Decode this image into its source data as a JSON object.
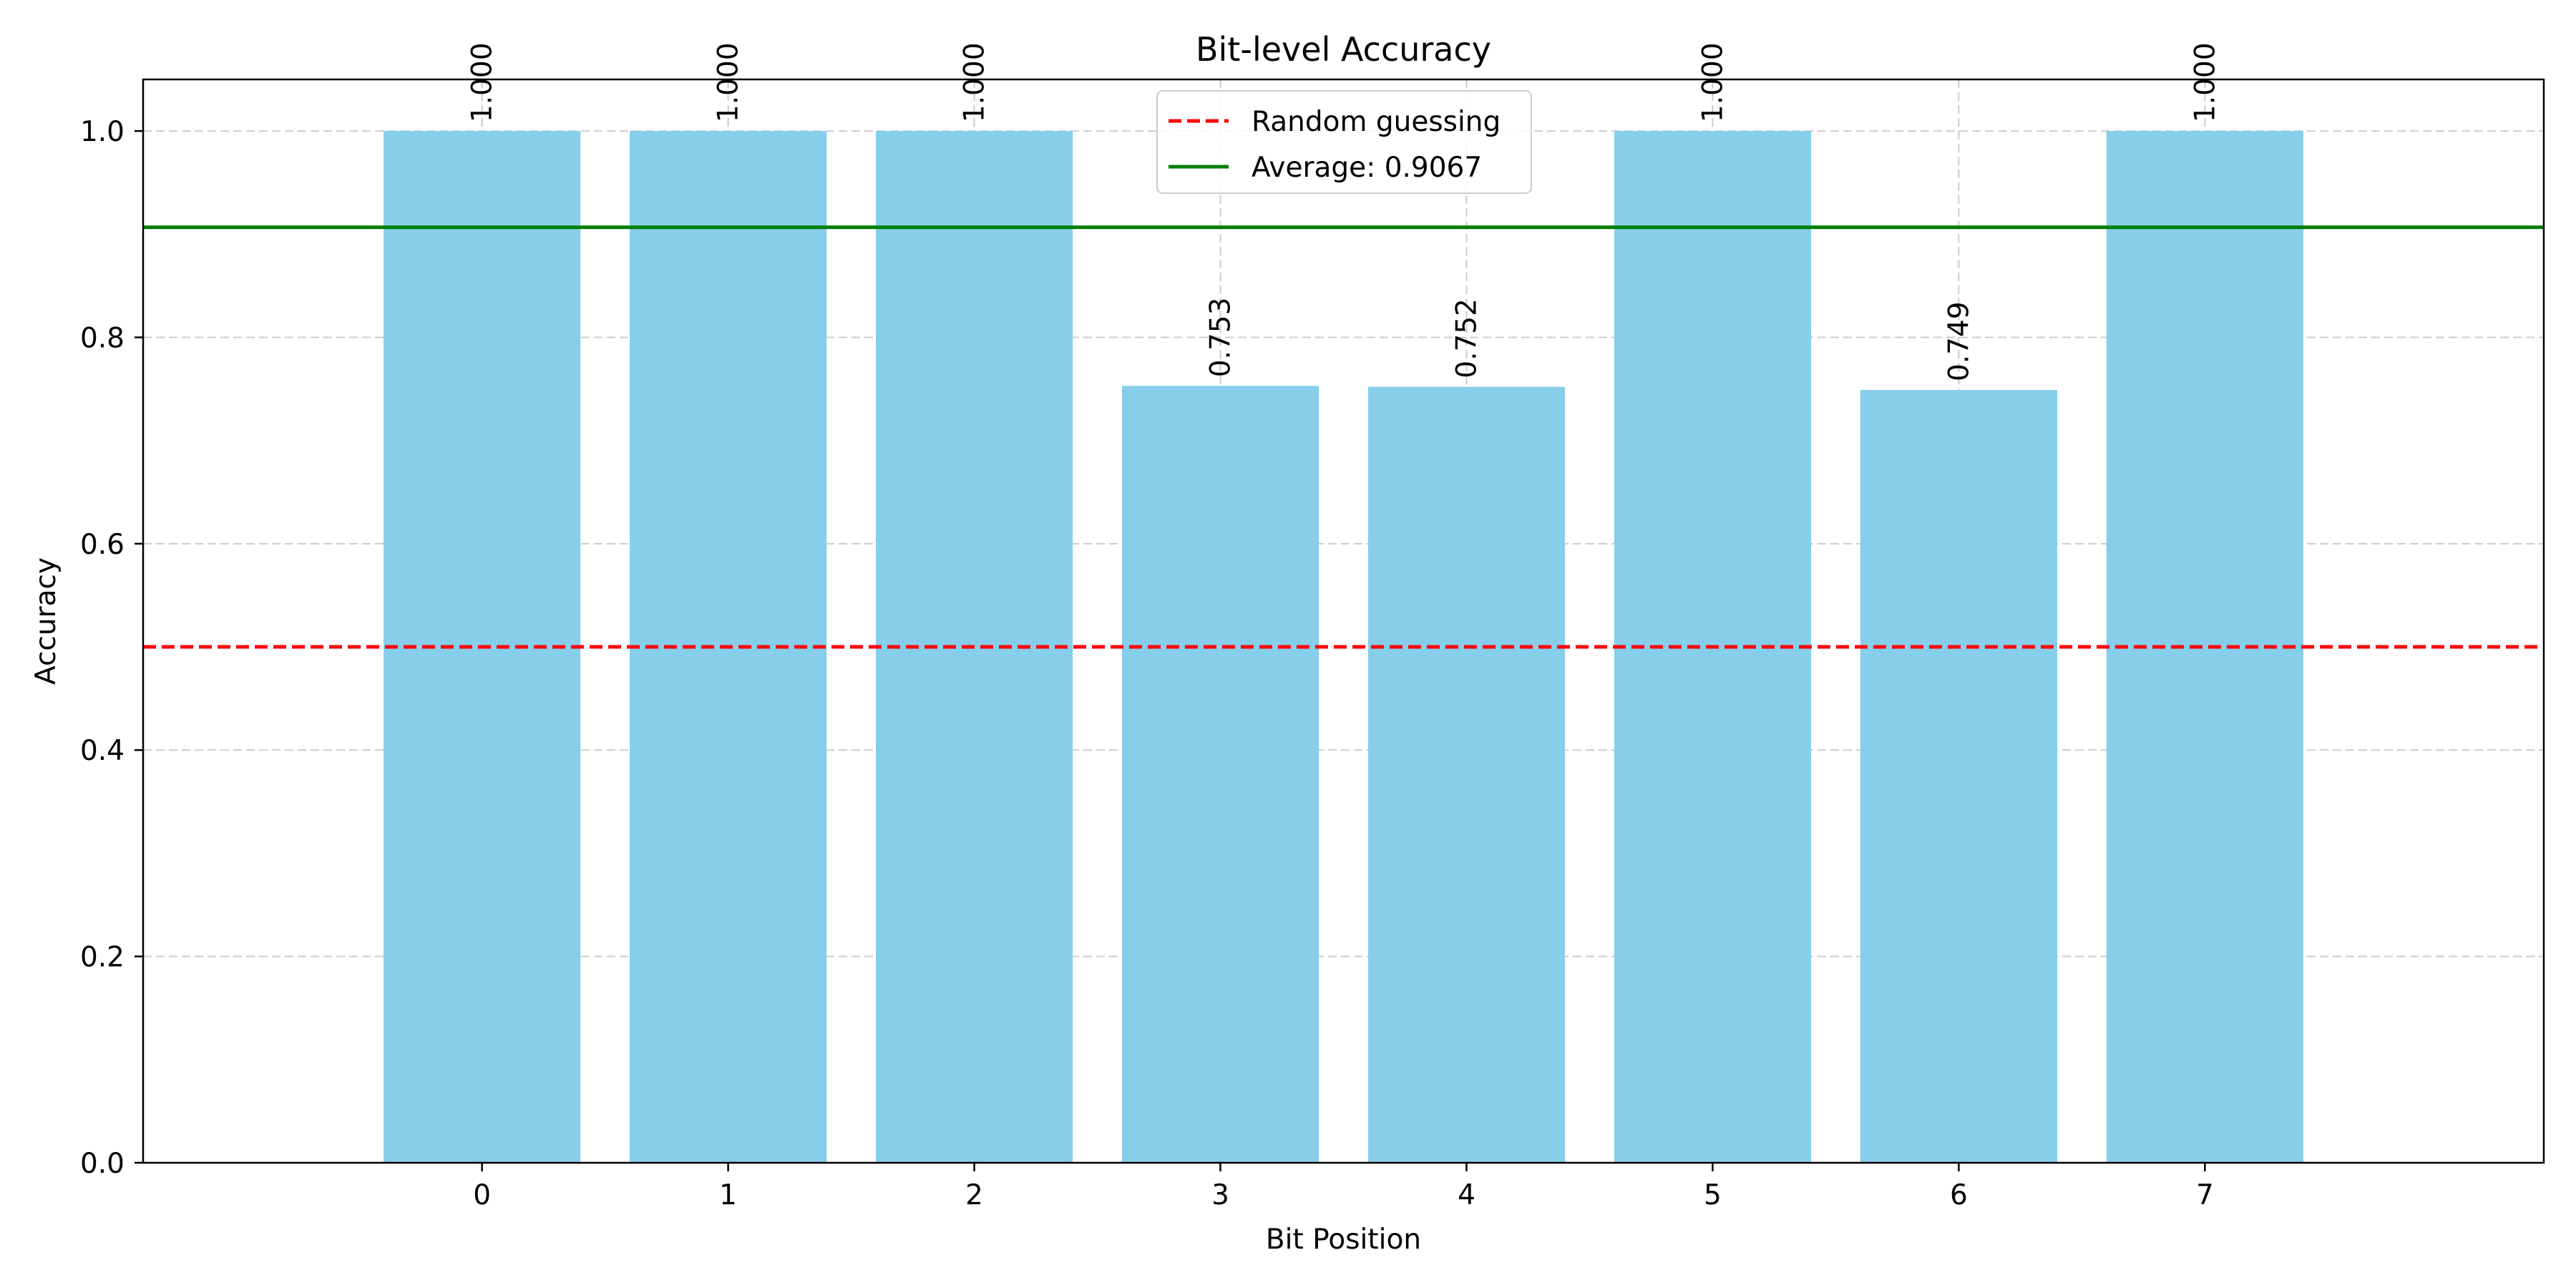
{
  "chart_data": {
    "type": "bar",
    "title": "Bit-level Accuracy",
    "xlabel": "Bit Position",
    "ylabel": "Accuracy",
    "categories": [
      "0",
      "1",
      "2",
      "3",
      "4",
      "5",
      "6",
      "7"
    ],
    "values": [
      1.0,
      1.0,
      1.0,
      0.753,
      0.752,
      1.0,
      0.749,
      1.0
    ],
    "value_labels": [
      "1.000",
      "1.000",
      "1.000",
      "0.753",
      "0.752",
      "1.000",
      "0.749",
      "1.000"
    ],
    "ylim": [
      0,
      1.05
    ],
    "yticks": [
      0.0,
      0.2,
      0.4,
      0.6,
      0.8,
      1.0
    ],
    "ytick_labels": [
      "0.0",
      "0.2",
      "0.4",
      "0.6",
      "0.8",
      "1.0"
    ],
    "grid": true,
    "bar_color": "#87CEEB",
    "reference_lines": [
      {
        "name": "Random guessing",
        "value": 0.5,
        "color": "#ff0000",
        "style": "dashed"
      },
      {
        "name": "Average: 0.9067",
        "value": 0.9067,
        "color": "#008000",
        "style": "solid"
      }
    ],
    "legend": {
      "location": "upper-center"
    }
  }
}
